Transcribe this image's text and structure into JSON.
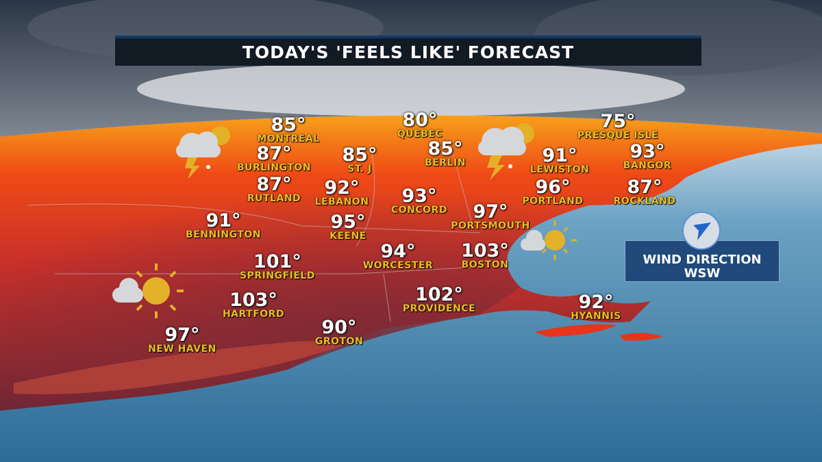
{
  "title": "TODAY'S 'FEELS LIKE' FORECAST",
  "cities": [
    {
      "name": "MONTREAL",
      "temp": "85°"
    },
    {
      "name": "QUEBEC",
      "temp": "80°"
    },
    {
      "name": "PRESQUE ISLE",
      "temp": "75°"
    },
    {
      "name": "BURLINGTON",
      "temp": "87°"
    },
    {
      "name": "ST. J",
      "temp": "85°"
    },
    {
      "name": "BERLIN",
      "temp": "85°"
    },
    {
      "name": "LEWISTON",
      "temp": "91°"
    },
    {
      "name": "BANGOR",
      "temp": "93°"
    },
    {
      "name": "RUTLAND",
      "temp": "87°"
    },
    {
      "name": "LEBANON",
      "temp": "92°"
    },
    {
      "name": "CONCORD",
      "temp": "93°"
    },
    {
      "name": "PORTLAND",
      "temp": "96°"
    },
    {
      "name": "ROCKLAND",
      "temp": "87°"
    },
    {
      "name": "PORTSMOUTH",
      "temp": "97°"
    },
    {
      "name": "BENNINGTON",
      "temp": "91°"
    },
    {
      "name": "KEENE",
      "temp": "95°"
    },
    {
      "name": "WORCESTER",
      "temp": "94°"
    },
    {
      "name": "BOSTON",
      "temp": "103°"
    },
    {
      "name": "SPRINGFIELD",
      "temp": "101°"
    },
    {
      "name": "HARTFORD",
      "temp": "103°"
    },
    {
      "name": "PROVIDENCE",
      "temp": "102°"
    },
    {
      "name": "HYANNIS",
      "temp": "92°"
    },
    {
      "name": "GROTON",
      "temp": "90°"
    },
    {
      "name": "NEW HAVEN",
      "temp": "97°"
    }
  ],
  "weather_icons": [
    "thunderstorm-sun-icon",
    "thunderstorm-sun-icon",
    "partly-sunny-icon",
    "partly-sunny-icon"
  ],
  "wind": {
    "label": "WIND DIRECTION",
    "direction": "WSW",
    "icon": "wind-arrow-icon"
  },
  "colors": {
    "heat": "#e8341a",
    "hot_core": "#8a2a30",
    "sea": "#3b78a0",
    "title_bg": "#121a24",
    "label": "#e9bd24"
  }
}
